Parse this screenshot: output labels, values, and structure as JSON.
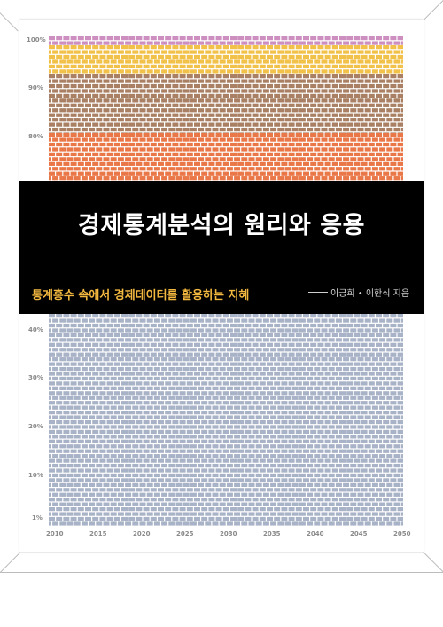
{
  "cover": {
    "title": "경제통계분석의 원리와 응용",
    "subtitle": "통계홍수 속에서 경제데이터를 활용하는 지혜",
    "authors": "이긍희 • 이한식 지음"
  },
  "chart": {
    "y_labels_top": [
      "100%",
      "90%",
      "80%"
    ],
    "y_labels_bottom": [
      "40%",
      "30%",
      "20%",
      "10%",
      "1%"
    ],
    "x_labels": [
      "2010",
      "2015",
      "2020",
      "2025",
      "2030",
      "2035",
      "2040",
      "2045",
      "2050"
    ],
    "colors": {
      "pink": "#cc8fc0",
      "yellow": "#f2c14a",
      "brown": "#a98064",
      "orange": "#e97748",
      "gray": "#a9b3c7"
    }
  }
}
